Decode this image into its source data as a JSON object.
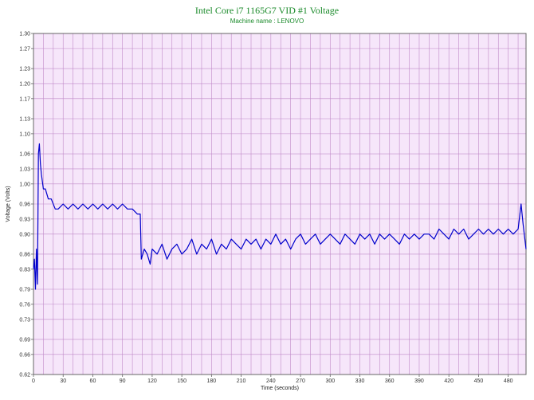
{
  "chart_data": {
    "type": "line",
    "title": "Intel Core i7 1165G7 VID #1 Voltage",
    "subtitle": "Machine name : LENOVO",
    "xlabel": "Time (seconds)",
    "ylabel": "Voltage (Volts)",
    "xlim": [
      0,
      498
    ],
    "ylim": [
      0.62,
      1.3
    ],
    "x_ticks": [
      "0",
      "30",
      "60",
      "90",
      "120",
      "150",
      "180",
      "210",
      "240",
      "270",
      "300",
      "330",
      "360",
      "390",
      "420",
      "450",
      "480"
    ],
    "y_ticks": [
      "0.62",
      "0.66",
      "0.69",
      "0.73",
      "0.76",
      "0.79",
      "0.83",
      "0.86",
      "0.90",
      "0.93",
      "0.96",
      "1.00",
      "1.03",
      "1.06",
      "1.10",
      "1.13",
      "1.17",
      "1.20",
      "1.23",
      "1.27",
      "1.30"
    ],
    "grid": true,
    "colors": {
      "plot_background": "#f6e6fa",
      "grid": "#c08ac8",
      "line": "#0000cc",
      "title": "#1a8a2a"
    },
    "series": [
      {
        "x": [
          0,
          1,
          2,
          3,
          4,
          5,
          6,
          7,
          8,
          10,
          12,
          15,
          18,
          22,
          25,
          30,
          35,
          40,
          45,
          50,
          55,
          60,
          65,
          70,
          75,
          80,
          85,
          90,
          95,
          100,
          105,
          108,
          109,
          112,
          115,
          118,
          120,
          125,
          130,
          135,
          140,
          145,
          150,
          155,
          160,
          165,
          170,
          175,
          180,
          185,
          190,
          195,
          200,
          205,
          210,
          215,
          220,
          225,
          230,
          235,
          240,
          245,
          250,
          255,
          260,
          265,
          270,
          275,
          280,
          285,
          290,
          295,
          300,
          305,
          310,
          315,
          320,
          325,
          330,
          335,
          340,
          345,
          350,
          355,
          360,
          365,
          370,
          375,
          380,
          385,
          390,
          395,
          400,
          405,
          410,
          415,
          420,
          425,
          430,
          435,
          440,
          445,
          450,
          455,
          460,
          465,
          470,
          475,
          480,
          485,
          490,
          493,
          495,
          498
        ],
        "y": [
          0.83,
          0.85,
          0.79,
          0.87,
          0.8,
          1.06,
          1.08,
          1.04,
          1.02,
          0.99,
          0.99,
          0.97,
          0.97,
          0.95,
          0.95,
          0.96,
          0.95,
          0.96,
          0.95,
          0.96,
          0.95,
          0.96,
          0.95,
          0.96,
          0.95,
          0.96,
          0.95,
          0.96,
          0.95,
          0.95,
          0.94,
          0.94,
          0.85,
          0.87,
          0.86,
          0.84,
          0.87,
          0.86,
          0.88,
          0.85,
          0.87,
          0.88,
          0.86,
          0.87,
          0.89,
          0.86,
          0.88,
          0.87,
          0.89,
          0.86,
          0.88,
          0.87,
          0.89,
          0.88,
          0.87,
          0.89,
          0.88,
          0.89,
          0.87,
          0.89,
          0.88,
          0.9,
          0.88,
          0.89,
          0.87,
          0.89,
          0.9,
          0.88,
          0.89,
          0.9,
          0.88,
          0.89,
          0.9,
          0.89,
          0.88,
          0.9,
          0.89,
          0.88,
          0.9,
          0.89,
          0.9,
          0.88,
          0.9,
          0.89,
          0.9,
          0.89,
          0.88,
          0.9,
          0.89,
          0.9,
          0.89,
          0.9,
          0.9,
          0.89,
          0.91,
          0.9,
          0.89,
          0.91,
          0.9,
          0.91,
          0.89,
          0.9,
          0.91,
          0.9,
          0.91,
          0.9,
          0.91,
          0.9,
          0.91,
          0.9,
          0.91,
          0.96,
          0.92,
          0.87
        ]
      }
    ]
  }
}
